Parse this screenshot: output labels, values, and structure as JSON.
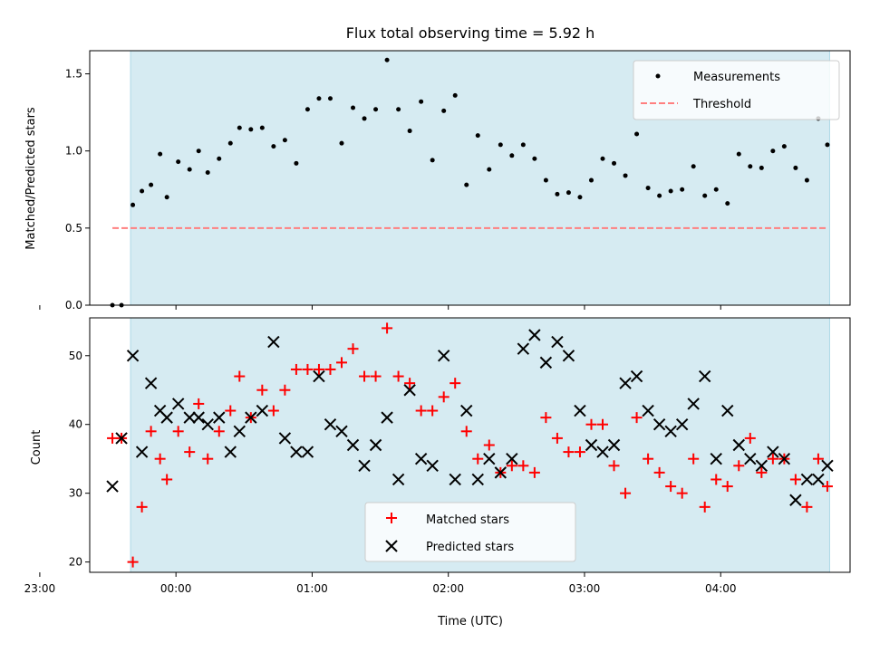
{
  "chart_data": [
    {
      "type": "scatter",
      "panel": "top",
      "title": "Flux total observing time = 5.92 h",
      "xlabel": "",
      "ylabel": "Matched/Predicted stars",
      "ylim": [
        0,
        1.65
      ],
      "yticks": [
        "0.0",
        "0.5",
        "1.0",
        "1.5"
      ],
      "x_unit": "minutes",
      "xlim_minutes": [
        -38,
        297
      ],
      "observing_window_minutes": [
        -20,
        288
      ],
      "shade_color": "#add8e6",
      "legend_position": "upper right",
      "grid": false,
      "series": [
        {
          "name": "Measurements",
          "kind": "points",
          "color": "#000000",
          "x": [
            -28,
            -24,
            -19,
            -15,
            -11,
            -7,
            -4,
            1,
            6,
            10,
            14,
            19,
            24,
            28,
            33,
            38,
            43,
            48,
            53,
            58,
            63,
            68,
            73,
            78,
            83,
            88,
            93,
            98,
            103,
            108,
            113,
            118,
            123,
            128,
            133,
            138,
            143,
            148,
            153,
            158,
            163,
            168,
            173,
            178,
            183,
            188,
            193,
            198,
            203,
            208,
            213,
            218,
            223,
            228,
            233,
            238,
            243,
            248,
            253,
            258,
            263,
            268,
            273,
            278,
            283,
            287
          ],
          "y": [
            0,
            0,
            0.65,
            0.74,
            0.78,
            0.98,
            0.7,
            0.93,
            0.88,
            1.0,
            0.86,
            0.95,
            1.05,
            1.15,
            1.14,
            1.15,
            1.03,
            1.07,
            0.92,
            1.27,
            1.34,
            1.34,
            1.05,
            1.28,
            1.21,
            1.27,
            1.59,
            1.27,
            1.13,
            1.32,
            0.94,
            1.26,
            1.36,
            0.78,
            1.1,
            0.88,
            1.04,
            0.97,
            1.04,
            0.95,
            0.81,
            0.72,
            0.73,
            0.7,
            0.81,
            0.95,
            0.92,
            0.84,
            1.11,
            0.76,
            0.71,
            0.74,
            0.75,
            0.9,
            0.71,
            0.75,
            0.66,
            0.98,
            0.9,
            0.89,
            1.0,
            1.03,
            0.89,
            0.81,
            1.21,
            1.04
          ]
        },
        {
          "name": "Threshold",
          "kind": "dashed-line",
          "color": "#ff7f7f",
          "x": [
            -28,
            287
          ],
          "y": [
            0.5,
            0.5
          ]
        }
      ]
    },
    {
      "type": "scatter",
      "panel": "bottom",
      "xlabel": "Time (UTC)",
      "ylabel": "Count",
      "ylim": [
        18.5,
        55.5
      ],
      "yticks": [
        "20",
        "30",
        "40",
        "50"
      ],
      "x_unit": "minutes",
      "xlim_minutes": [
        -38,
        297
      ],
      "observing_window_minutes": [
        -20,
        288
      ],
      "shade_color": "#add8e6",
      "xticks": [
        "23:00",
        "00:00",
        "01:00",
        "02:00",
        "03:00",
        "04:00"
      ],
      "legend_position": "lower center",
      "grid": false,
      "series": [
        {
          "name": "Matched stars",
          "marker": "plus",
          "color": "#ff0000",
          "x": [
            -28,
            -24,
            -19,
            -15,
            -11,
            -7,
            -4,
            1,
            6,
            10,
            14,
            19,
            24,
            28,
            33,
            38,
            43,
            48,
            53,
            58,
            63,
            68,
            73,
            78,
            83,
            88,
            93,
            98,
            103,
            108,
            113,
            118,
            123,
            128,
            133,
            138,
            143,
            148,
            153,
            158,
            163,
            168,
            173,
            178,
            183,
            188,
            193,
            198,
            203,
            208,
            213,
            218,
            223,
            228,
            233,
            238,
            243,
            248,
            253,
            258,
            263,
            268,
            273,
            278,
            283,
            287
          ],
          "y": [
            38,
            38,
            20,
            28,
            39,
            35,
            32,
            39,
            36,
            43,
            35,
            39,
            42,
            47,
            41,
            45,
            42,
            45,
            48,
            48,
            48,
            48,
            49,
            51,
            47,
            47,
            54,
            47,
            46,
            42,
            42,
            44,
            46,
            39,
            35,
            37,
            33,
            34,
            34,
            33,
            41,
            38,
            36,
            36,
            40,
            40,
            34,
            30,
            41,
            35,
            33,
            31,
            30,
            35,
            28,
            32,
            31,
            34,
            38,
            33,
            35,
            35,
            32,
            28,
            35,
            31
          ]
        },
        {
          "name": "Predicted stars",
          "marker": "x",
          "color": "#000000",
          "x": [
            -28,
            -24,
            -19,
            -15,
            -11,
            -7,
            -4,
            1,
            6,
            10,
            14,
            19,
            24,
            28,
            33,
            38,
            43,
            48,
            53,
            58,
            63,
            68,
            73,
            78,
            83,
            88,
            93,
            98,
            103,
            108,
            113,
            118,
            123,
            128,
            133,
            138,
            143,
            148,
            153,
            158,
            163,
            168,
            173,
            178,
            183,
            188,
            193,
            198,
            203,
            208,
            213,
            218,
            223,
            228,
            233,
            238,
            243,
            248,
            253,
            258,
            263,
            268,
            273,
            278,
            283,
            287
          ],
          "y": [
            31,
            38,
            50,
            36,
            46,
            42,
            41,
            43,
            41,
            41,
            40,
            41,
            36,
            39,
            41,
            42,
            52,
            38,
            36,
            36,
            47,
            40,
            39,
            37,
            34,
            37,
            41,
            32,
            45,
            35,
            34,
            50,
            32,
            42,
            32,
            35,
            33,
            35,
            51,
            53,
            49,
            52,
            50,
            42,
            37,
            36,
            37,
            46,
            47,
            42,
            40,
            39,
            40,
            43,
            47,
            35,
            42,
            37,
            35,
            34,
            36,
            35,
            29,
            32,
            32,
            34
          ]
        }
      ]
    }
  ]
}
